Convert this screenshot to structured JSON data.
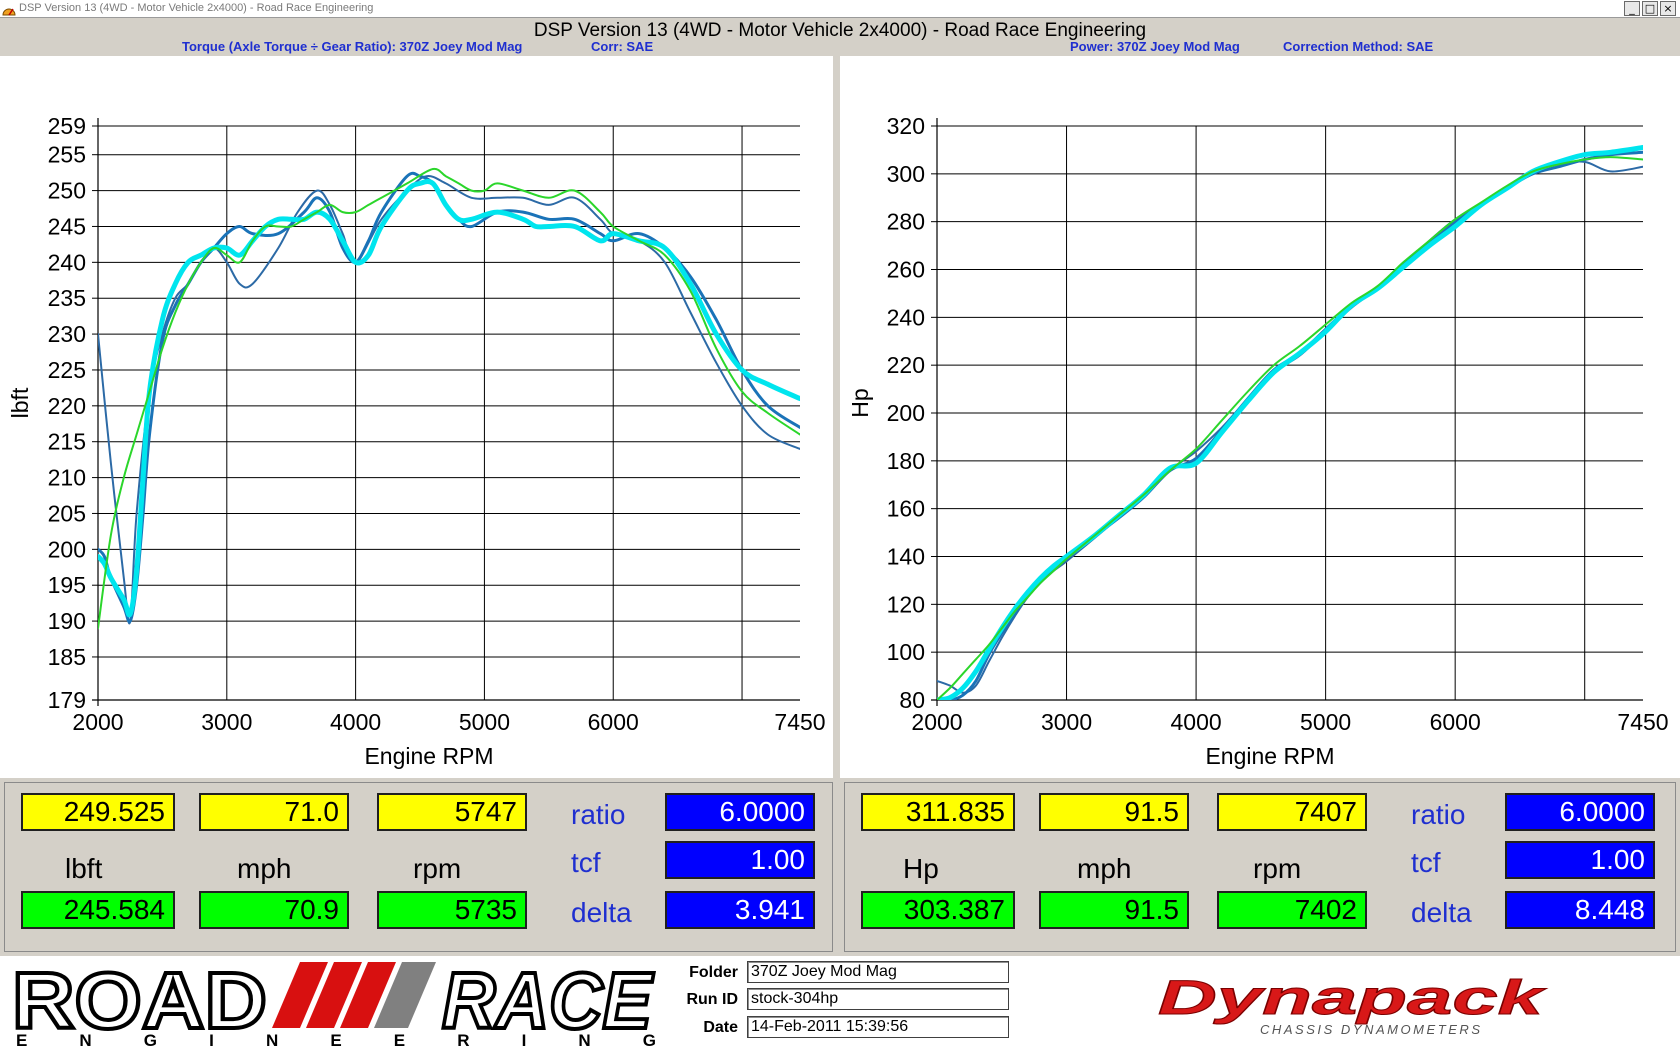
{
  "window": {
    "title": "DSP Version 13 (4WD - Motor Vehicle 2x4000) - Road Race Engineering",
    "heading": "DSP Version 13 (4WD - Motor Vehicle 2x4000) - Road Race Engineering",
    "min_label": "_",
    "max_label": "□",
    "close_label": "×"
  },
  "torque_header": {
    "title": "Torque (Axle Torque ÷ Gear Ratio): 370Z Joey Mod Mag",
    "corr": "Corr: SAE"
  },
  "power_header": {
    "title": "Power: 370Z Joey Mod Mag",
    "corr": "Correction Method: SAE"
  },
  "colors": {
    "run1": "#1a73b8",
    "run2": "#2c6aa6",
    "run3": "#00e5ee",
    "run4": "#2bd62b",
    "run5": "#1fa3c8",
    "run6": "#11c8e0"
  },
  "chart_data": [
    {
      "type": "line",
      "title": "",
      "xlabel": "Engine RPM",
      "ylabel": "lbft",
      "xlim": [
        2000,
        7450
      ],
      "ylim": [
        179,
        259
      ],
      "x_ticks": [
        2000,
        3000,
        4000,
        5000,
        6000,
        7450
      ],
      "y_ticks": [
        179,
        185,
        190,
        195,
        200,
        205,
        210,
        215,
        220,
        225,
        230,
        235,
        240,
        245,
        250,
        255,
        259
      ],
      "grid": true,
      "legend": "none",
      "series": [
        {
          "color": "#2c6aa6",
          "width": 2,
          "x": [
            2000,
            2100,
            2200,
            2250,
            2300,
            2400,
            2500,
            2600,
            2700,
            2800,
            2900,
            3000,
            3100,
            3200,
            3400,
            3550,
            3700,
            3800,
            3900,
            4000,
            4200,
            4400,
            4550,
            4700,
            4900,
            5100,
            5300,
            5500,
            5700,
            5900,
            6000,
            6200,
            6400,
            6600,
            6800,
            7000,
            7200,
            7450
          ],
          "y": [
            230,
            212,
            196,
            190,
            205,
            222,
            230,
            235,
            237,
            240,
            242,
            240,
            237,
            237,
            242,
            247,
            250,
            248,
            244,
            240,
            246,
            250,
            252,
            251,
            249,
            249,
            249,
            248,
            249,
            246,
            244,
            243,
            240,
            233,
            226,
            220,
            216,
            214
          ]
        },
        {
          "color": "#1a73b8",
          "width": 3,
          "x": [
            2000,
            2050,
            2100,
            2200,
            2250,
            2300,
            2350,
            2400,
            2500,
            2600,
            2700,
            2800,
            2900,
            3000,
            3100,
            3200,
            3400,
            3600,
            3700,
            3800,
            3900,
            4000,
            4100,
            4200,
            4400,
            4500,
            4600,
            4700,
            4800,
            4900,
            5100,
            5300,
            5500,
            5700,
            5900,
            6000,
            6200,
            6400,
            6600,
            6800,
            7000,
            7200,
            7450
          ],
          "y": [
            200,
            199,
            196,
            192,
            190,
            195,
            205,
            216,
            229,
            234,
            237,
            240,
            242,
            244,
            245,
            244,
            244,
            247,
            249,
            247,
            242,
            240,
            243,
            247,
            252,
            252,
            251,
            248,
            246,
            245,
            247,
            247,
            246,
            246,
            244,
            243,
            244,
            242,
            238,
            232,
            225,
            220,
            217
          ]
        },
        {
          "color": "#00e5ee",
          "width": 5,
          "x": [
            2000,
            2050,
            2100,
            2200,
            2250,
            2300,
            2350,
            2400,
            2500,
            2600,
            2700,
            2800,
            2900,
            3000,
            3100,
            3200,
            3300,
            3400,
            3500,
            3600,
            3700,
            3800,
            3900,
            4000,
            4100,
            4200,
            4400,
            4500,
            4600,
            4700,
            4800,
            4900,
            5100,
            5300,
            5400,
            5500,
            5700,
            5900,
            6000,
            6200,
            6400,
            6600,
            6800,
            7000,
            7200,
            7450
          ],
          "y": [
            199,
            198,
            196,
            193,
            191,
            197,
            210,
            222,
            232,
            237,
            240,
            241,
            242,
            242,
            241,
            243,
            245,
            246,
            246,
            246,
            247,
            246,
            243,
            240,
            241,
            245,
            250,
            251,
            251,
            248,
            246,
            246,
            247,
            246,
            245,
            245,
            245,
            243,
            244,
            243,
            242,
            237,
            230,
            225,
            223,
            221
          ]
        },
        {
          "color": "#2bd62b",
          "width": 2,
          "x": [
            2000,
            2100,
            2200,
            2300,
            2400,
            2500,
            2600,
            2700,
            2800,
            2900,
            3000,
            3100,
            3200,
            3300,
            3400,
            3500,
            3600,
            3700,
            3800,
            3900,
            4000,
            4100,
            4200,
            4400,
            4600,
            4700,
            4800,
            4900,
            5000,
            5100,
            5300,
            5500,
            5700,
            5900,
            6000,
            6200,
            6400,
            6600,
            6800,
            7000,
            7200,
            7450
          ],
          "y": [
            189,
            202,
            210,
            216,
            222,
            228,
            233,
            237,
            240,
            242,
            241,
            240,
            243,
            245,
            245,
            245,
            246,
            247,
            248,
            247,
            247,
            248,
            249,
            251,
            253,
            252,
            251,
            250,
            250,
            251,
            250,
            249,
            250,
            247,
            245,
            243,
            241,
            236,
            228,
            222,
            219,
            216
          ]
        }
      ]
    },
    {
      "type": "line",
      "title": "",
      "xlabel": "Engine RPM",
      "ylabel": "Hp",
      "xlim": [
        2000,
        7450
      ],
      "ylim": [
        80,
        320
      ],
      "x_ticks": [
        2000,
        3000,
        4000,
        5000,
        6000,
        7450
      ],
      "y_ticks": [
        80,
        100,
        120,
        140,
        160,
        180,
        200,
        220,
        240,
        260,
        280,
        300,
        320
      ],
      "grid": true,
      "legend": "none",
      "series": [
        {
          "color": "#2c6aa6",
          "width": 2,
          "x": [
            2000,
            2100,
            2200,
            2300,
            2400,
            2500,
            2600,
            2700,
            2800,
            2900,
            3000,
            3200,
            3400,
            3600,
            3800,
            4000,
            4200,
            4400,
            4600,
            4800,
            5000,
            5200,
            5400,
            5600,
            5800,
            6000,
            6200,
            6400,
            6600,
            6800,
            7000,
            7200,
            7450
          ],
          "y": [
            88,
            86,
            83,
            86,
            96,
            106,
            115,
            123,
            129,
            134,
            138,
            147,
            156,
            165,
            176,
            184,
            194,
            206,
            217,
            224,
            234,
            244,
            252,
            262,
            272,
            281,
            287,
            294,
            301,
            304,
            305,
            301,
            303
          ]
        },
        {
          "color": "#1a73b8",
          "width": 3,
          "x": [
            2000,
            2100,
            2200,
            2300,
            2400,
            2500,
            2600,
            2700,
            2800,
            2900,
            3000,
            3200,
            3400,
            3600,
            3800,
            4000,
            4200,
            4400,
            4600,
            4800,
            5000,
            5200,
            5400,
            5600,
            5800,
            6000,
            6200,
            6400,
            6600,
            6800,
            7000,
            7200,
            7450
          ],
          "y": [
            80,
            80,
            82,
            88,
            99,
            108,
            116,
            124,
            130,
            135,
            140,
            148,
            156,
            165,
            176,
            181,
            193,
            206,
            218,
            225,
            235,
            245,
            252,
            262,
            271,
            280,
            287,
            294,
            300,
            303,
            306,
            308,
            309
          ]
        },
        {
          "color": "#00e5ee",
          "width": 5,
          "x": [
            2000,
            2100,
            2200,
            2300,
            2400,
            2500,
            2600,
            2700,
            2800,
            2900,
            3000,
            3200,
            3400,
            3600,
            3800,
            4000,
            4200,
            4400,
            4600,
            4800,
            5000,
            5200,
            5400,
            5600,
            5800,
            6000,
            6200,
            6400,
            6600,
            6800,
            7000,
            7200,
            7450
          ],
          "y": [
            80,
            81,
            85,
            92,
            101,
            110,
            118,
            125,
            131,
            136,
            140,
            148,
            157,
            166,
            177,
            179,
            192,
            205,
            217,
            225,
            234,
            245,
            252,
            261,
            270,
            278,
            287,
            294,
            301,
            305,
            308,
            309,
            311
          ]
        },
        {
          "color": "#2bd62b",
          "width": 2,
          "x": [
            2000,
            2100,
            2200,
            2300,
            2400,
            2500,
            2600,
            2700,
            2800,
            2900,
            3000,
            3200,
            3400,
            3600,
            3800,
            4000,
            4200,
            4400,
            4600,
            4800,
            5000,
            5200,
            5400,
            5600,
            5800,
            6000,
            6200,
            6400,
            6600,
            6800,
            7000,
            7200,
            7450
          ],
          "y": [
            80,
            85,
            91,
            97,
            103,
            110,
            117,
            123,
            129,
            134,
            139,
            148,
            157,
            166,
            176,
            185,
            197,
            209,
            220,
            228,
            237,
            246,
            253,
            263,
            272,
            281,
            288,
            295,
            301,
            304,
            306,
            307,
            306
          ]
        }
      ]
    }
  ],
  "readouts_torque": {
    "value1": "249.525",
    "value2": "71.0",
    "value3": "5747",
    "unit1": "lbft",
    "unit2": "mph",
    "unit3": "rpm",
    "value4": "245.584",
    "value5": "70.9",
    "value6": "5735",
    "ratio_label": "ratio",
    "ratio": "6.0000",
    "tcf_label": "tcf",
    "tcf": "1.00",
    "delta_label": "delta",
    "delta": "3.941"
  },
  "readouts_power": {
    "value1": "311.835",
    "value2": "91.5",
    "value3": "7407",
    "unit1": "Hp",
    "unit2": "mph",
    "unit3": "rpm",
    "value4": "303.387",
    "value5": "91.5",
    "value6": "7402",
    "ratio_label": "ratio",
    "ratio": "6.0000",
    "tcf_label": "tcf",
    "tcf": "1.00",
    "delta_label": "delta",
    "delta": "8.448"
  },
  "info": {
    "folder_label": "Folder",
    "folder": "370Z Joey Mod Mag",
    "runid_label": "Run ID",
    "runid": "stock-304hp",
    "date_label": "Date",
    "date": "14-Feb-2011 15:39:56"
  },
  "logo_rr": {
    "word1": "ROAD",
    "word2": "RACE",
    "word3": "ENGINEERING"
  },
  "logo_dp": {
    "word": "Dynapack",
    "tag": "CHASSIS DYNAMOMETERS"
  }
}
